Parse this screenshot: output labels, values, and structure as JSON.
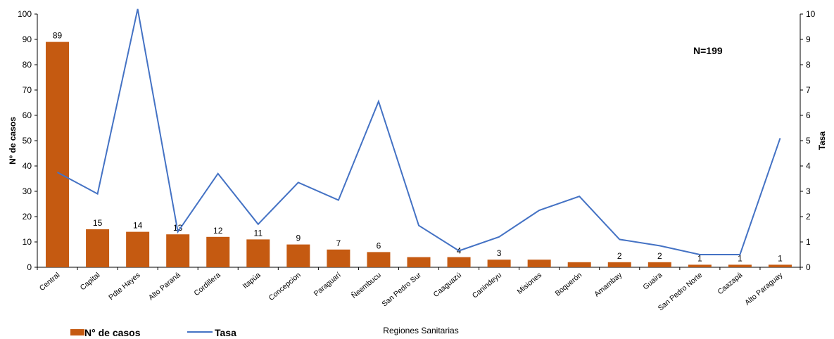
{
  "chart_data": {
    "type": "bar",
    "categories": [
      "Central",
      "Capital",
      "Pdte Hayes",
      "Alto Paraná",
      "Cordillera",
      "Itapúa",
      "Concepcion",
      "Paraguarí",
      "Ñeembucu",
      "San Pedro Sur",
      "Caaguazú",
      "Canindeyu",
      "Misiones",
      "Boquerón",
      "Amambay",
      "Guaira",
      "San Pedro Norte",
      "Caazapá",
      "Alto Paraguay"
    ],
    "series": [
      {
        "name": "N° de casos",
        "type": "bar",
        "axis": "left",
        "color": "#C55A11",
        "values": [
          89,
          15,
          14,
          13,
          12,
          11,
          9,
          7,
          6,
          4,
          4,
          3,
          3,
          2,
          2,
          2,
          1,
          1,
          1
        ],
        "data_labels": [
          "89",
          "15",
          "14",
          "13",
          "12",
          "11",
          "9",
          "7",
          "6",
          "",
          "4",
          "3",
          "",
          "",
          "2",
          "2",
          "1",
          "1",
          "1"
        ]
      },
      {
        "name": "Tasa",
        "type": "line",
        "axis": "right",
        "color": "#4472C4",
        "values": [
          3.75,
          2.9,
          10.2,
          1.4,
          3.7,
          1.7,
          3.35,
          2.65,
          6.55,
          1.65,
          0.65,
          1.2,
          2.25,
          2.8,
          1.1,
          0.85,
          0.5,
          0.5,
          5.1
        ]
      }
    ],
    "xlabel": "Regiones Sanitarias",
    "ylabel": "Nº de casos",
    "ylabel_right": "Tasa",
    "ylim": [
      0,
      100
    ],
    "ylim_right": [
      0,
      10
    ],
    "yticks": [
      "0",
      "10",
      "20",
      "30",
      "40",
      "50",
      "60",
      "70",
      "80",
      "90",
      "100"
    ],
    "yticks_right": [
      "0",
      "1",
      "2",
      "3",
      "4",
      "5",
      "6",
      "7",
      "8",
      "9",
      "10"
    ],
    "annotation": "N=199",
    "grid": false,
    "legend_position": "bottom-left"
  }
}
